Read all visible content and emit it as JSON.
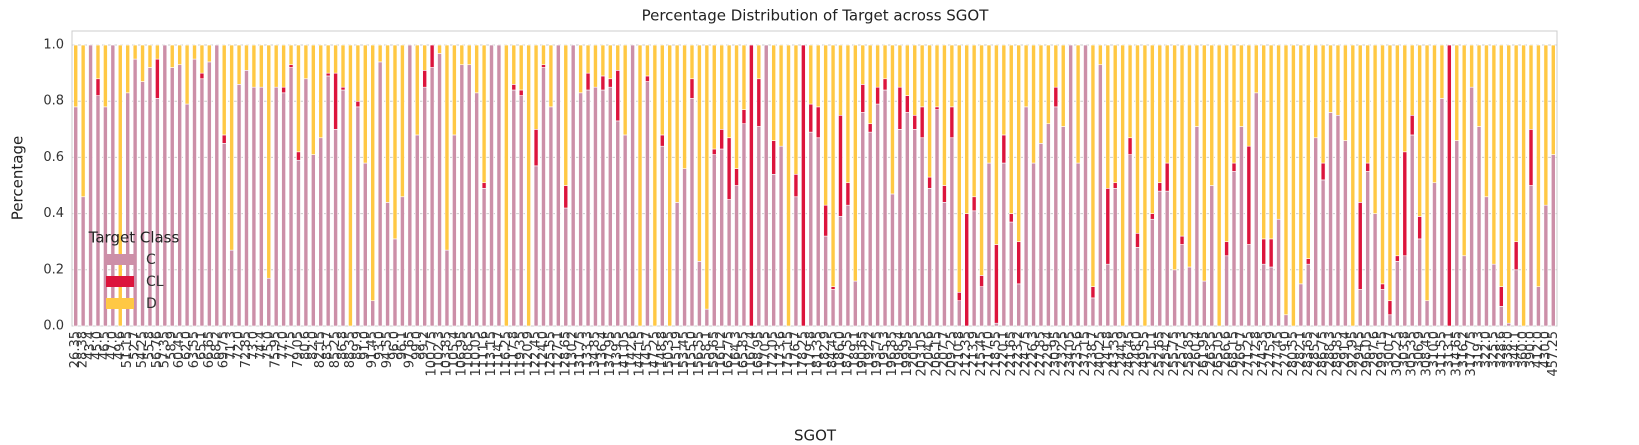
{
  "chart_data": {
    "type": "stacked_bar",
    "title": "Percentage Distribution of Target across SGOT",
    "x_label": "SGOT",
    "y_label": "Percentage",
    "legend_title": "Target Class",
    "legend_loc": "lower left",
    "grid": true,
    "ylim": [
      0,
      1.05
    ],
    "yticks": [
      {
        "value": 0,
        "label": "0.0"
      },
      0.2,
      0.4,
      0.6,
      0.8,
      {
        "value": 1,
        "label": "1.0"
      }
    ],
    "categories": [
      "26.35",
      "28.38",
      "43.4",
      "45.0",
      "46.5",
      "47.0",
      "49.6",
      "51.15",
      "52.7",
      "54.25",
      "55.8",
      "56.76",
      "57.35",
      "58.9",
      "60.45",
      "62.0",
      "63.55",
      "65.1",
      "66.65",
      "68.2",
      "69.75",
      "71.3",
      "72.0",
      "72.85",
      "73.0",
      "74.4",
      "75.0",
      "75.95",
      "77.0",
      "77.5",
      "79.05",
      "80.6",
      "82.0",
      "82.15",
      "83.7",
      "85.25",
      "86.8",
      "88.35",
      "89.9",
      "91.0",
      "91.45",
      "93.0",
      "94.55",
      "96.0",
      "96.1",
      "97.65",
      "99.0",
      "99.2",
      "100.75",
      "102.3",
      "103.85",
      "105.4",
      "106.95",
      "108.5",
      "110.05",
      "111.6",
      "113.15",
      "114.7",
      "116.25",
      "117.8",
      "119.35",
      "120.9",
      "122.45",
      "124.0",
      "125.55",
      "127.1",
      "128.65",
      "130.2",
      "131.75",
      "133.3",
      "134.85",
      "136.4",
      "137.95",
      "139.5",
      "141.05",
      "142.6",
      "144.15",
      "145.7",
      "147.25",
      "148.8",
      "150.35",
      "151.9",
      "153.45",
      "155.0",
      "156.55",
      "158.1",
      "159.65",
      "161.2",
      "162.75",
      "164.3",
      "165.85",
      "167.4",
      "168.95",
      "170.5",
      "172.05",
      "173.6",
      "175.15",
      "176.7",
      "178.25",
      "179.8",
      "181.35",
      "182.9",
      "184.45",
      "186.0",
      "187.55",
      "189.1",
      "190.65",
      "192.2",
      "193.75",
      "195.3",
      "196.85",
      "198.4",
      "199.95",
      "201.5",
      "203.05",
      "204.6",
      "206.15",
      "207.7",
      "209.25",
      "210.8",
      "212.35",
      "213.9",
      "215.45",
      "217.0",
      "218.55",
      "220.1",
      "221.65",
      "223.2",
      "224.75",
      "226.3",
      "227.85",
      "229.4",
      "230.95",
      "232.5",
      "234.05",
      "235.6",
      "237.15",
      "238.7",
      "240.25",
      "241.8",
      "243.35",
      "244.9",
      "246.45",
      "248.0",
      "249.55",
      "251.1",
      "252.65",
      "254.2",
      "255.75",
      "257.3",
      "258.85",
      "260.4",
      "261.95",
      "263.5",
      "265.05",
      "266.6",
      "268.15",
      "269.7",
      "271.25",
      "272.8",
      "274.35",
      "275.9",
      "277.45",
      "279.0",
      "280.55",
      "282.1",
      "283.65",
      "285.2",
      "286.75",
      "288.3",
      "289.85",
      "291.4",
      "292.95",
      "294.5",
      "296.05",
      "297.6",
      "299.15",
      "300.7",
      "302.25",
      "303.8",
      "305.35",
      "306.9",
      "308.45",
      "310.0",
      "311.55",
      "313.1",
      "314.65",
      "316.2",
      "317.75",
      "319.3",
      "322.0",
      "325.5",
      "328.6",
      "338.0",
      "344.1",
      "360.0",
      "390.0",
      "412.0",
      "430.0",
      "457.25"
    ],
    "series": [
      {
        "name": "C",
        "color": "#cc8fa8",
        "values": [
          0.78,
          0.46,
          1,
          0.82,
          0.78,
          1,
          0,
          0.83,
          0.95,
          0.87,
          0.92,
          0.81,
          1,
          0.92,
          0.93,
          0.79,
          0.95,
          0.88,
          0.94,
          1,
          0.65,
          0.27,
          0.86,
          0.91,
          0.85,
          0.85,
          0.17,
          0.85,
          0.83,
          0.92,
          0.59,
          0.88,
          0.61,
          0.67,
          0.89,
          0.7,
          0.84,
          0,
          0.78,
          0.58,
          0.09,
          0.94,
          0.44,
          0.31,
          0.46,
          1,
          0.68,
          0.85,
          0.92,
          0.97,
          0.27,
          0.68,
          0.93,
          0.93,
          0.83,
          0.49,
          1,
          1,
          0,
          0.84,
          0.82,
          0,
          0.57,
          0.92,
          0.78,
          1,
          0.42,
          1,
          0.83,
          0.84,
          0.85,
          0.84,
          0.85,
          0.73,
          0.68,
          1,
          0,
          0.87,
          0,
          0.64,
          0,
          0.44,
          0.56,
          0.81,
          0.23,
          0.06,
          0.61,
          0.63,
          0.45,
          0.5,
          0.72,
          0,
          0.71,
          1,
          0.54,
          0.64,
          0,
          0.46,
          0,
          0.69,
          0.67,
          0.32,
          0.13,
          0.39,
          0.43,
          0.16,
          0.76,
          0.69,
          0.79,
          0.84,
          0.47,
          0.7,
          0.76,
          0.7,
          0.67,
          0.49,
          0.77,
          0.44,
          0.67,
          0.09,
          0,
          0.41,
          0.14,
          0.58,
          0.01,
          0.58,
          0.37,
          0.15,
          0.78,
          0.58,
          0.65,
          0.72,
          0.78,
          0.71,
          1,
          0.58,
          1,
          0.1,
          0.93,
          0.22,
          0.49,
          0,
          0.61,
          0.28,
          0,
          0.38,
          0.48,
          0.48,
          0.2,
          0.29,
          0.21,
          0.71,
          0.16,
          0.5,
          0,
          0.25,
          0.55,
          0.71,
          0.29,
          0.83,
          0.22,
          0.21,
          0.38,
          0.04,
          0,
          0.15,
          0.22,
          0.67,
          0.52,
          0.76,
          0.75,
          0.66,
          0,
          0.13,
          0.55,
          0.4,
          0.13,
          0.04,
          0.23,
          0.25,
          0.68,
          0.31,
          0.09,
          0.51,
          0.81,
          0,
          0.66,
          0.25,
          0.85,
          0.71,
          0.46,
          0.22,
          0.07,
          0.01,
          0.2,
          0,
          0.5,
          0.14,
          0.43,
          0.61
        ]
      },
      {
        "name": "CL",
        "color": "#dc143c",
        "values": [
          0,
          0,
          0,
          0.06,
          0,
          0,
          0,
          0,
          0,
          0,
          0,
          0.14,
          0,
          0,
          0,
          0,
          0,
          0.02,
          0,
          0,
          0.03,
          0,
          0,
          0,
          0,
          0,
          0,
          0,
          0.02,
          0.01,
          0.03,
          0,
          0,
          0,
          0.01,
          0.2,
          0.01,
          0,
          0.02,
          0,
          0,
          0,
          0,
          0,
          0,
          0,
          0,
          0.06,
          0.08,
          0,
          0,
          0,
          0,
          0,
          0,
          0.02,
          0,
          0,
          0,
          0.02,
          0.02,
          0,
          0.13,
          0.01,
          0,
          0,
          0.08,
          0,
          0,
          0.06,
          0,
          0.05,
          0.03,
          0.18,
          0,
          0,
          0,
          0.02,
          0,
          0.04,
          0,
          0,
          0,
          0.07,
          0,
          0,
          0.02,
          0.07,
          0.22,
          0.06,
          0.05,
          1,
          0.17,
          0,
          0.12,
          0,
          0,
          0.08,
          1,
          0.1,
          0.11,
          0.11,
          0.01,
          0.36,
          0.08,
          0,
          0.1,
          0.03,
          0.06,
          0.04,
          0,
          0.15,
          0.06,
          0.05,
          0.11,
          0.04,
          0.01,
          0.06,
          0.11,
          0.03,
          0.4,
          0.05,
          0.04,
          0,
          0.28,
          0.1,
          0.03,
          0.15,
          0,
          0,
          0,
          0,
          0.07,
          0,
          0,
          0,
          0,
          0.04,
          0,
          0.27,
          0.02,
          0,
          0.06,
          0.05,
          0,
          0.02,
          0.03,
          0.1,
          0,
          0.03,
          0,
          0,
          0,
          0,
          0,
          0.05,
          0.03,
          0,
          0.35,
          0,
          0.09,
          0.1,
          0,
          0,
          0,
          0,
          0.02,
          0,
          0.06,
          0,
          0,
          0,
          0,
          0.31,
          0.03,
          0,
          0.02,
          0.05,
          0.02,
          0.37,
          0.07,
          0.08,
          0,
          0,
          0,
          1,
          0,
          0,
          0,
          0,
          0,
          0,
          0.07,
          0,
          0.1,
          0,
          0.2,
          0,
          0,
          0
        ]
      },
      {
        "name": "D",
        "color": "#ffc844",
        "values": [
          0.22,
          0.54,
          0,
          0.12,
          0.22,
          0,
          1,
          0.17,
          0.05,
          0.13,
          0.08,
          0.05,
          0,
          0.08,
          0.07,
          0.21,
          0.05,
          0.1,
          0.06,
          0,
          0.32,
          0.73,
          0.14,
          0.09,
          0.15,
          0.15,
          0.83,
          0.15,
          0.15,
          0.07,
          0.38,
          0.12,
          0.39,
          0.33,
          0.1,
          0.1,
          0.15,
          1,
          0.2,
          0.42,
          0.91,
          0.06,
          0.56,
          0.69,
          0.54,
          0,
          0.32,
          0.09,
          0,
          0.03,
          0.73,
          0.32,
          0.07,
          0.07,
          0.17,
          0.49,
          0,
          0,
          1,
          0.14,
          0.16,
          1,
          0.3,
          0.07,
          0.22,
          0,
          0.5,
          0,
          0.17,
          0.1,
          0.15,
          0.11,
          0.12,
          0.09,
          0.32,
          0,
          1,
          0.11,
          1,
          0.32,
          1,
          0.56,
          0.44,
          0.12,
          0.77,
          0.94,
          0.37,
          0.3,
          0.33,
          0.44,
          0.23,
          0,
          0.12,
          0,
          0.34,
          0.36,
          1,
          0.46,
          0,
          0.21,
          0.22,
          0.57,
          0.86,
          0.25,
          0.49,
          0.84,
          0.14,
          0.28,
          0.15,
          0.12,
          0.53,
          0.15,
          0.18,
          0.25,
          0.22,
          0.47,
          0.22,
          0.5,
          0.22,
          0.88,
          0.6,
          0.54,
          0.82,
          0.42,
          0.71,
          0.32,
          0.6,
          0.7,
          0.22,
          0.42,
          0.35,
          0.28,
          0.15,
          0.29,
          0,
          0.42,
          0,
          0.86,
          0.07,
          0.51,
          0.49,
          1,
          0.33,
          0.67,
          1,
          0.6,
          0.49,
          0.42,
          0.8,
          0.68,
          0.79,
          0.29,
          0.84,
          0.5,
          1,
          0.7,
          0.42,
          0.29,
          0.36,
          0.17,
          0.69,
          0.69,
          0.62,
          0.96,
          1,
          0.85,
          0.76,
          0.33,
          0.42,
          0.24,
          0.25,
          0.34,
          1,
          0.56,
          0.42,
          0.6,
          0.85,
          0.91,
          0.75,
          0.38,
          0.25,
          0.61,
          0.91,
          0.49,
          0.19,
          0,
          0.34,
          0.75,
          0.15,
          0.29,
          0.54,
          0.78,
          0.86,
          0.99,
          0.7,
          1,
          0.3,
          0.86,
          0.57,
          0.39
        ]
      }
    ]
  }
}
